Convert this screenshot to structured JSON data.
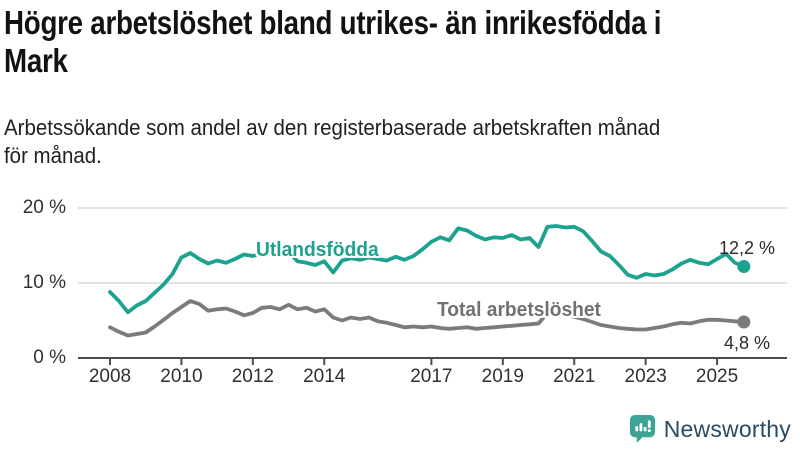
{
  "header": {
    "title_lines": [
      "Högre arbetslöshet bland utrikes- än inrikesfödda i",
      "Mark"
    ],
    "subtitle_lines": [
      "Arbetssökande som andel av den registerbaserade arbetskraften månad",
      "för månad."
    ]
  },
  "chart_data": {
    "type": "line",
    "title": "Högre arbetslöshet bland utrikes- än inrikesfödda i Mark",
    "subtitle": "Arbetssökande som andel av den registerbaserade arbetskraften månad för månad.",
    "xlabel": "",
    "ylabel": "",
    "ylim": [
      0,
      22
    ],
    "grid": "horizontal",
    "legend_position": "inline-labels",
    "yticks": [
      {
        "value": 20,
        "label": "20 %"
      },
      {
        "value": 10,
        "label": "10 %"
      },
      {
        "value": 0,
        "label": "0 %"
      }
    ],
    "xticks": [
      {
        "value": 2008,
        "label": "2008"
      },
      {
        "value": 2010,
        "label": "2010"
      },
      {
        "value": 2012,
        "label": "2012"
      },
      {
        "value": 2014,
        "label": "2014"
      },
      {
        "value": 2017,
        "label": "2017"
      },
      {
        "value": 2019,
        "label": "2019"
      },
      {
        "value": 2021,
        "label": "2021"
      },
      {
        "value": 2023,
        "label": "2023"
      },
      {
        "value": 2025,
        "label": "2025"
      }
    ],
    "x": [
      2008,
      2008.25,
      2008.5,
      2008.75,
      2009,
      2009.25,
      2009.5,
      2009.75,
      2010,
      2010.25,
      2010.5,
      2010.75,
      2011,
      2011.25,
      2011.5,
      2011.75,
      2012,
      2012.25,
      2012.5,
      2012.75,
      2013,
      2013.25,
      2013.5,
      2013.75,
      2014,
      2014.25,
      2014.5,
      2014.75,
      2015,
      2015.25,
      2015.5,
      2015.75,
      2016,
      2016.25,
      2016.5,
      2016.75,
      2017,
      2017.25,
      2017.5,
      2017.75,
      2018,
      2018.25,
      2018.5,
      2018.75,
      2019,
      2019.25,
      2019.5,
      2019.75,
      2020,
      2020.25,
      2020.5,
      2020.75,
      2021,
      2021.25,
      2021.5,
      2021.75,
      2022,
      2022.25,
      2022.5,
      2022.75,
      2023,
      2023.25,
      2023.5,
      2023.75,
      2024,
      2024.25,
      2024.5,
      2024.75,
      2025,
      2025.25,
      2025.5,
      2025.75
    ],
    "series": [
      {
        "name": "Utlandsfödda",
        "color": "#1CA38F",
        "end_label": "12,2 %",
        "end_value": 12.2,
        "values": [
          8.8,
          7.6,
          6.1,
          7.0,
          7.6,
          8.7,
          9.8,
          11.2,
          13.4,
          14.0,
          13.2,
          12.6,
          13.0,
          12.7,
          13.2,
          13.8,
          13.6,
          13.9,
          14.4,
          13.8,
          14.1,
          12.9,
          12.7,
          12.4,
          12.9,
          11.4,
          13.0,
          13.3,
          13.1,
          13.4,
          13.2,
          13.0,
          13.5,
          13.1,
          13.6,
          14.5,
          15.5,
          16.1,
          15.7,
          17.3,
          17.0,
          16.3,
          15.8,
          16.1,
          16.0,
          16.4,
          15.8,
          16.0,
          14.8,
          17.5,
          17.6,
          17.4,
          17.5,
          16.9,
          15.6,
          14.2,
          13.6,
          12.4,
          11.1,
          10.7,
          11.2,
          11.0,
          11.2,
          11.8,
          12.6,
          13.1,
          12.7,
          12.5,
          13.2,
          13.9,
          12.7,
          12.2
        ]
      },
      {
        "name": "Total arbetslöshet",
        "color": "#7B7B7B",
        "end_label": "4,8 %",
        "end_value": 4.8,
        "values": [
          4.1,
          3.5,
          3.0,
          3.2,
          3.4,
          4.2,
          5.1,
          6.0,
          6.8,
          7.6,
          7.2,
          6.3,
          6.5,
          6.6,
          6.2,
          5.7,
          6.0,
          6.7,
          6.8,
          6.5,
          7.1,
          6.5,
          6.7,
          6.2,
          6.5,
          5.4,
          5.0,
          5.4,
          5.2,
          5.4,
          4.9,
          4.7,
          4.4,
          4.1,
          4.2,
          4.1,
          4.2,
          4.0,
          3.9,
          4.0,
          4.1,
          3.9,
          4.0,
          4.1,
          4.2,
          4.3,
          4.4,
          4.5,
          4.6,
          6.0,
          6.2,
          5.8,
          5.5,
          5.2,
          4.8,
          4.4,
          4.2,
          4.0,
          3.9,
          3.8,
          3.8,
          4.0,
          4.2,
          4.5,
          4.7,
          4.6,
          4.9,
          5.1,
          5.1,
          5.0,
          4.9,
          4.8
        ]
      }
    ]
  },
  "footer": {
    "brand": "Newsworthy",
    "logo_icon": "bar-chart-speech-bubble-icon",
    "brand_icon_color": "#3DA495",
    "brand_text_color": "#2A4A63"
  }
}
